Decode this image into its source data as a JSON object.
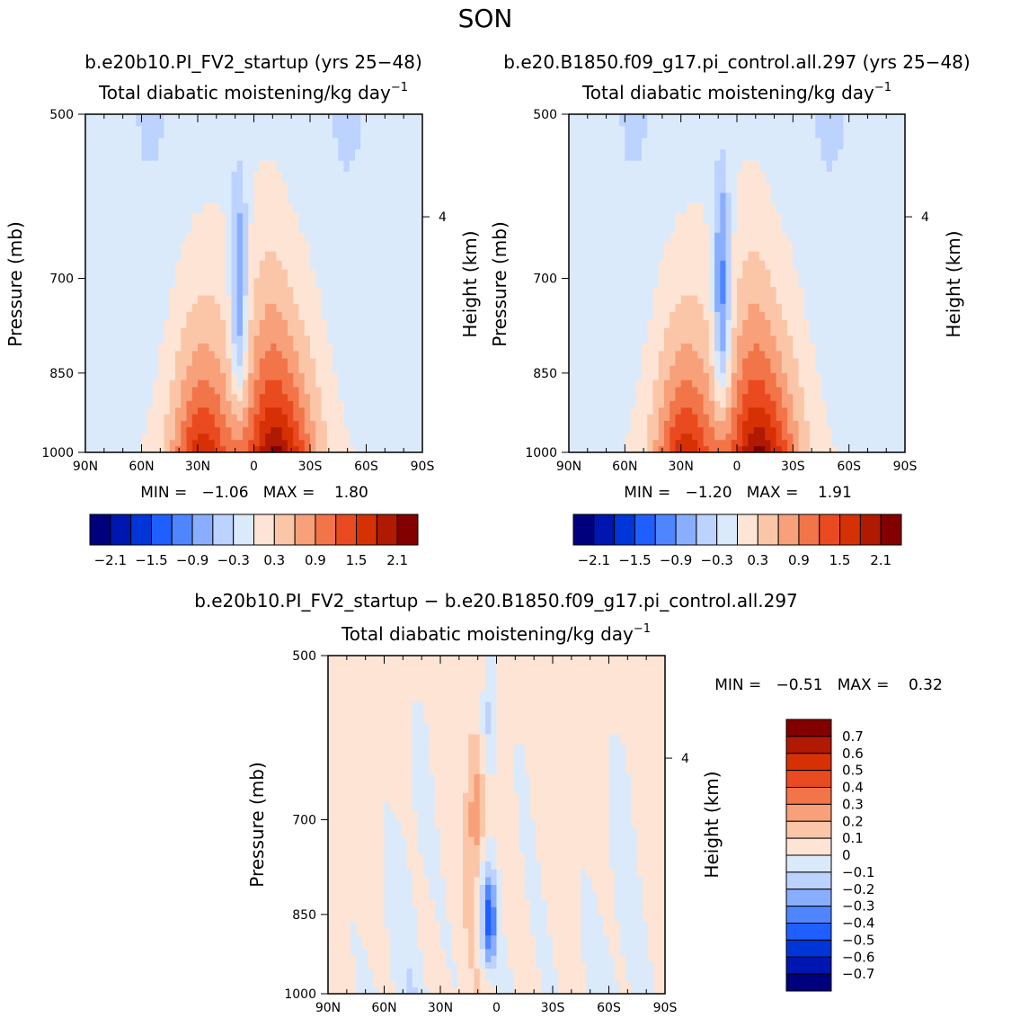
{
  "page": {
    "title": "SON"
  },
  "colors": {
    "abs_palette": [
      "#00007f",
      "#0016b0",
      "#0036d8",
      "#1f5fff",
      "#4f86ff",
      "#8aaeff",
      "#bcd2ff",
      "#dbeafb",
      "#fde4d4",
      "#fbc6a8",
      "#f8a07a",
      "#f27449",
      "#ea4a1f",
      "#d63105",
      "#b01a02",
      "#830000"
    ],
    "diff_palette": [
      "#00007f",
      "#0016b0",
      "#0036d8",
      "#1f5fff",
      "#4f86ff",
      "#8aaeff",
      "#bcd2ff",
      "#dbeafb",
      "#fde4d4",
      "#fbc6a8",
      "#f8a07a",
      "#f27449",
      "#ea4a1f",
      "#d63105",
      "#b01a02",
      "#830000"
    ]
  },
  "panels": {
    "top_left": {
      "case_title": "b.e20b10.PI_FV2_startup (yrs 25−48)",
      "stats": "MIN =   −1.06   MAX =    1.80"
    },
    "top_right": {
      "case_title": "b.e20.B1850.f09_g17.pi_control.all.297 (yrs 25−48)",
      "stats": "MIN =   −1.20   MAX =    1.91"
    },
    "bottom": {
      "case_title": "b.e20b10.PI_FV2_startup − b.e20.B1850.f09_g17.pi_control.all.297",
      "stats": "MIN =   −0.51   MAX =    0.32"
    }
  },
  "chart_data": [
    {
      "type": "heatmap",
      "name": "top_left",
      "title": "Total diabatic moistening/kg day",
      "title_sup": "−1",
      "xlabel": "",
      "ylabel": "Pressure (mb)",
      "ylabel_right": "Height (km)",
      "x_ticks": [
        "90N",
        "60N",
        "30N",
        "0",
        "30S",
        "60S",
        "90S"
      ],
      "x_tick_values": [
        90,
        60,
        30,
        0,
        -30,
        -60,
        -90
      ],
      "y_ticks": [
        "500",
        "700",
        "850",
        "1000"
      ],
      "y_tick_values": [
        500,
        700,
        850,
        1000
      ],
      "right_ticks": [
        "4"
      ],
      "right_tick_pressure": [
        617
      ],
      "xlim": [
        90,
        -90
      ],
      "ylim": [
        1000,
        500
      ],
      "min": -1.06,
      "max": 1.8,
      "colorbar_labels": [
        "−2.1",
        "−1.5",
        "−0.9",
        "−0.3",
        "0.3",
        "0.9",
        "1.5",
        "2.1"
      ]
    },
    {
      "type": "heatmap",
      "name": "top_right",
      "title": "Total diabatic moistening/kg day",
      "title_sup": "−1",
      "xlabel": "",
      "ylabel": "Pressure (mb)",
      "ylabel_right": "Height (km)",
      "x_ticks": [
        "90N",
        "60N",
        "30N",
        "0",
        "30S",
        "60S",
        "90S"
      ],
      "x_tick_values": [
        90,
        60,
        30,
        0,
        -30,
        -60,
        -90
      ],
      "y_ticks": [
        "500",
        "700",
        "850",
        "1000"
      ],
      "y_tick_values": [
        500,
        700,
        850,
        1000
      ],
      "right_ticks": [
        "4"
      ],
      "right_tick_pressure": [
        617
      ],
      "xlim": [
        90,
        -90
      ],
      "ylim": [
        1000,
        500
      ],
      "min": -1.2,
      "max": 1.91,
      "colorbar_labels": [
        "−2.1",
        "−1.5",
        "−0.9",
        "−0.3",
        "0.3",
        "0.9",
        "1.5",
        "2.1"
      ]
    },
    {
      "type": "heatmap",
      "name": "bottom",
      "title": "Total diabatic moistening/kg day",
      "title_sup": "−1",
      "xlabel": "",
      "ylabel": "Pressure (mb)",
      "ylabel_right": "Height (km)",
      "x_ticks": [
        "90N",
        "60N",
        "30N",
        "0",
        "30S",
        "60S",
        "90S"
      ],
      "x_tick_values": [
        90,
        60,
        30,
        0,
        -30,
        -60,
        -90
      ],
      "y_ticks": [
        "500",
        "700",
        "850",
        "1000"
      ],
      "y_tick_values": [
        500,
        700,
        850,
        1000
      ],
      "right_ticks": [
        "4"
      ],
      "right_tick_pressure": [
        617
      ],
      "xlim": [
        90,
        -90
      ],
      "ylim": [
        1000,
        500
      ],
      "min": -0.51,
      "max": 0.32,
      "colorbar_labels": [
        "0.7",
        "0.6",
        "0.5",
        "0.4",
        "0.3",
        "0.2",
        "0.1",
        "0",
        "−0.1",
        "−0.2",
        "−0.3",
        "−0.4",
        "−0.5",
        "−0.6",
        "−0.7"
      ]
    }
  ]
}
